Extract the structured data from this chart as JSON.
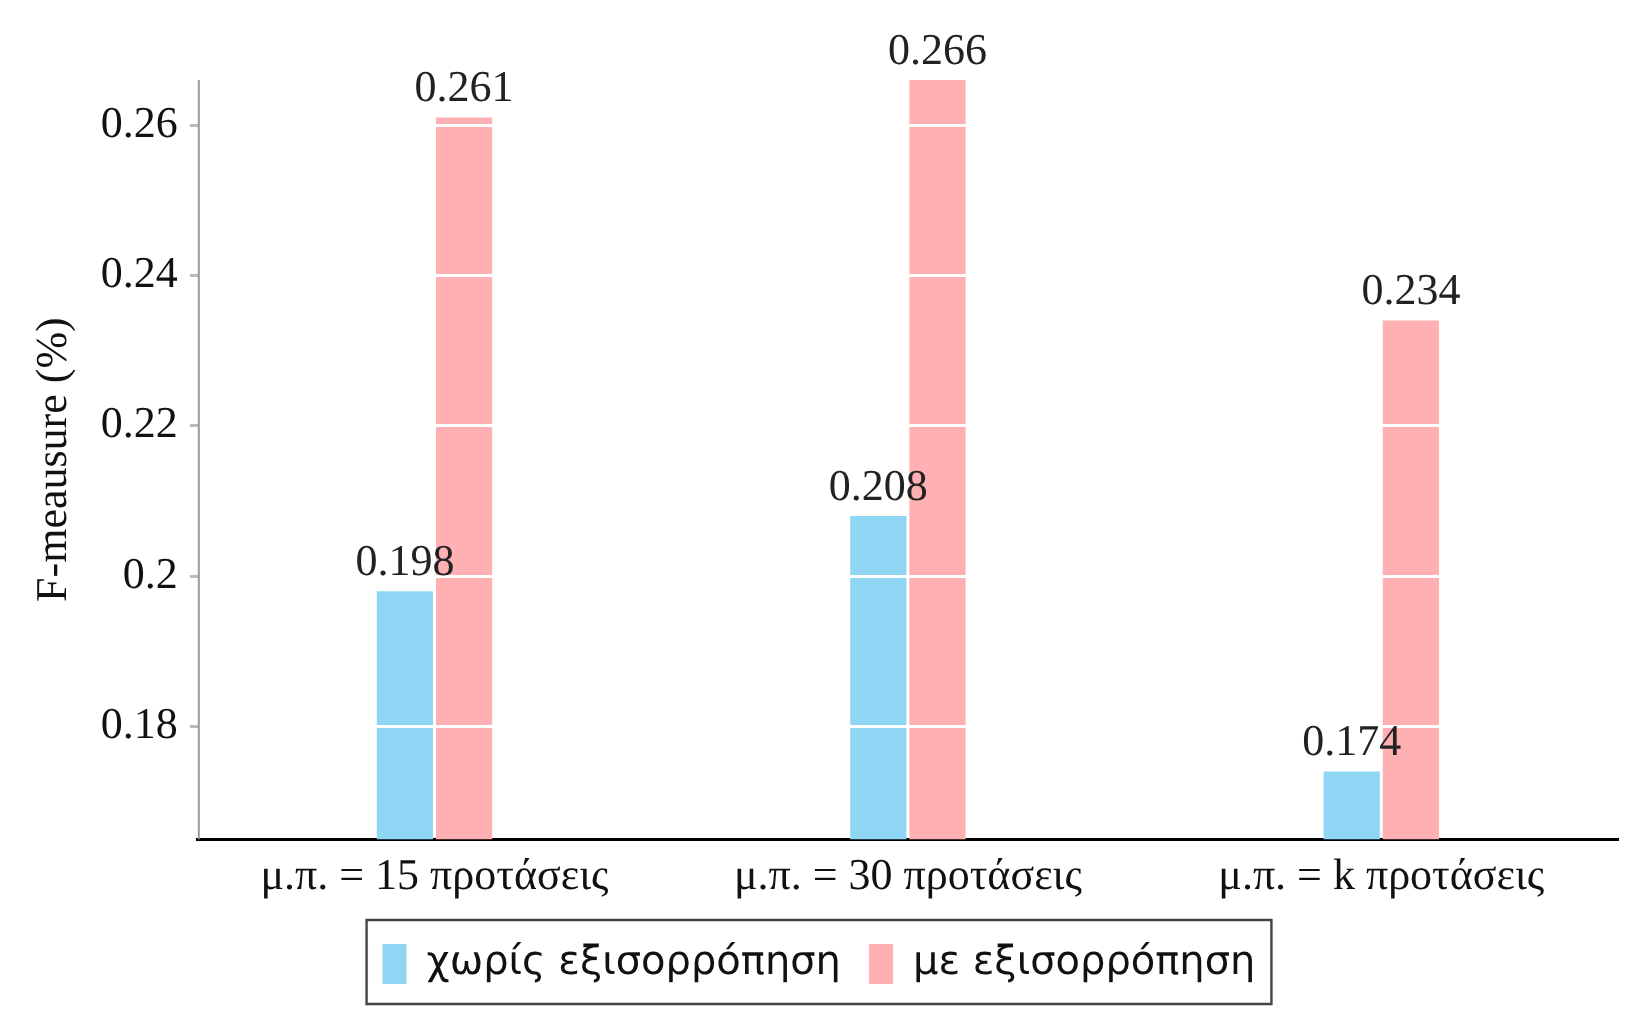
{
  "chart_data": {
    "type": "bar",
    "ylabel": "F-meausure (%)",
    "categories": [
      "μ.π. = 15 προτάσεις",
      "μ.π. = 30 προτάσεις",
      "μ.π. = k προτάσεις"
    ],
    "series": [
      {
        "name": "χωρίς εξισορρόπηση",
        "color": "#8fd6f5",
        "values": [
          0.198,
          0.208,
          0.174
        ]
      },
      {
        "name": "με εξισορρόπηση",
        "color": "#ffb0b3",
        "values": [
          0.261,
          0.266,
          0.234
        ]
      }
    ],
    "ylim": [
      0.165,
      0.266
    ],
    "yticks": [
      {
        "value": 0.18,
        "label": "0.18"
      },
      {
        "value": 0.2,
        "label": "0.2"
      },
      {
        "value": 0.22,
        "label": "0.22"
      },
      {
        "value": 0.24,
        "label": "0.24"
      },
      {
        "value": 0.26,
        "label": "0.26"
      }
    ],
    "grid": "y",
    "legend": "bottom",
    "data_labels": true
  }
}
